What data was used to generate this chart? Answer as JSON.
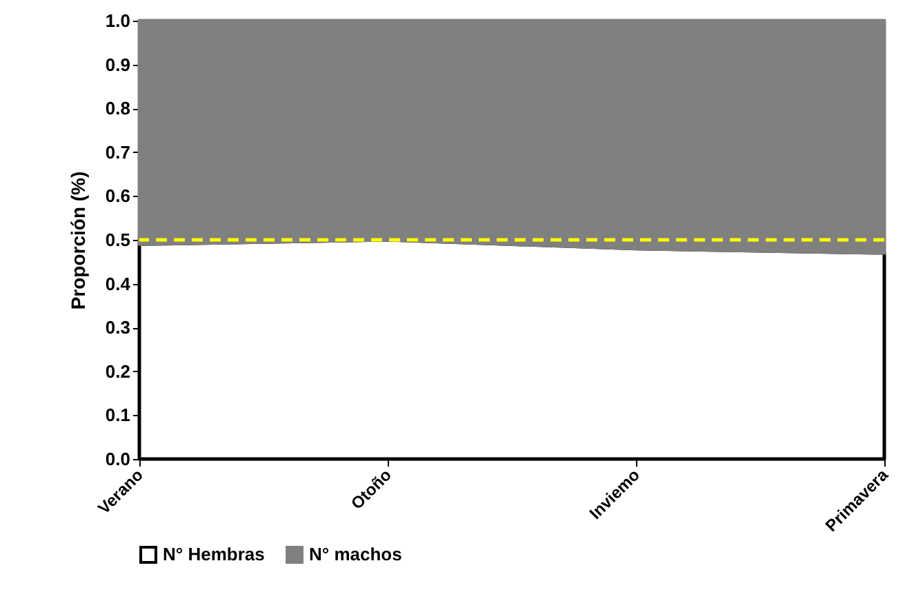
{
  "chart_data": {
    "type": "area",
    "stacked": true,
    "ylabel": "Proporción (%)",
    "categories": [
      "Verano",
      "Otoño",
      "Inviemo",
      "Primavera"
    ],
    "series": [
      {
        "name": "N° Hembras",
        "color": "#ffffff",
        "values": [
          0.49,
          0.5,
          0.48,
          0.47
        ]
      },
      {
        "name": "N° machos",
        "color": "#808080",
        "values": [
          0.51,
          0.5,
          0.52,
          0.53
        ]
      }
    ],
    "ylim": [
      0,
      1
    ],
    "yticks": [
      {
        "value": 0,
        "label": "0.0"
      },
      {
        "value": 0.1,
        "label": "0.1"
      },
      {
        "value": 0.2,
        "label": "0.2"
      },
      {
        "value": 0.3,
        "label": "0.3"
      },
      {
        "value": 0.4,
        "label": "0.4"
      },
      {
        "value": 0.5,
        "label": "0.5"
      },
      {
        "value": 0.6,
        "label": "0.6"
      },
      {
        "value": 0.7,
        "label": "0.7"
      },
      {
        "value": 0.8,
        "label": "0.8"
      },
      {
        "value": 0.9,
        "label": "0.9"
      },
      {
        "value": 1,
        "label": "1.0"
      }
    ],
    "ref_lines": [
      {
        "axis": "y",
        "value": 0.5,
        "color": "#ffff00",
        "line_style": "dashed"
      }
    ],
    "legend": "bottom"
  }
}
